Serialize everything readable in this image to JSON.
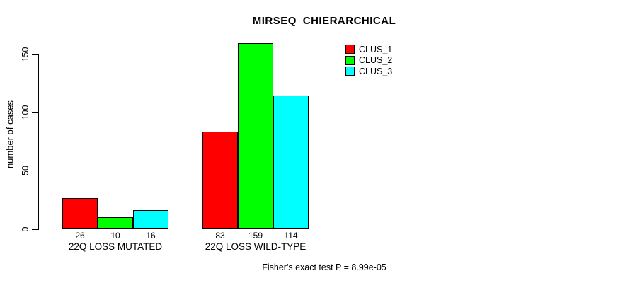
{
  "title": "MIRSEQ_CHIERARCHICAL",
  "y_axis_label": "number of cases",
  "footnote": "Fisher's exact test P = 8.99e-05",
  "colors": {
    "clus_1": "#ff0000",
    "clus_2": "#00ff00",
    "clus_3": "#00ffff",
    "axis": "#000000",
    "background": "#ffffff"
  },
  "chart_data": {
    "type": "bar",
    "title": "MIRSEQ_CHIERARCHICAL",
    "xlabel": "",
    "ylabel": "number of cases",
    "categories": [
      "22Q LOSS MUTATED",
      "22Q LOSS WILD-TYPE"
    ],
    "series": [
      {
        "name": "CLUS_1",
        "color": "#ff0000",
        "values": [
          26,
          83
        ]
      },
      {
        "name": "CLUS_2",
        "color": "#00ff00",
        "values": [
          10,
          159
        ]
      },
      {
        "name": "CLUS_3",
        "color": "#00ffff",
        "values": [
          16,
          114
        ]
      }
    ],
    "bar_value_labels": [
      [
        "26",
        "10",
        "16"
      ],
      [
        "83",
        "159",
        "114"
      ]
    ],
    "yticks": [
      0,
      50,
      100,
      150
    ],
    "ylim": [
      0,
      160
    ],
    "grid": false,
    "legend_position": "top-right",
    "legend_entries": [
      "CLUS_1",
      "CLUS_2",
      "CLUS_3"
    ],
    "annotation": "Fisher's exact test P = 8.99e-05"
  }
}
